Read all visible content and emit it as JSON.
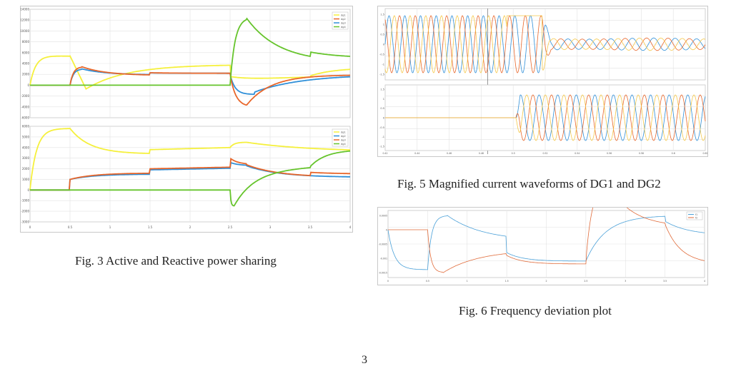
{
  "fig3": {
    "caption": "Fig. 3 Active and Reactive power sharing",
    "colors": {
      "yellow": "#f5f03c",
      "blue": "#2f8fd8",
      "orange": "#e8662a",
      "green": "#66c42c"
    },
    "top": {
      "legend": [
        "dg1",
        "dg2",
        "dg3",
        "dg4"
      ],
      "ylim": [
        -6000,
        14000
      ],
      "yticks": [
        "14000",
        "12000",
        "10000",
        "8000",
        "6000",
        "4000",
        "2000",
        "0",
        "-2000",
        "-4000",
        "-6000"
      ]
    },
    "bottom": {
      "legend": [
        "dg1",
        "dg2",
        "dg3",
        "dg4"
      ],
      "ylim": [
        -3000,
        6000
      ],
      "yticks": [
        "6000",
        "5000",
        "4000",
        "3000",
        "2000",
        "1000",
        "0",
        "-1000",
        "-2000",
        "-3000"
      ]
    },
    "xticks": [
      "0",
      "0.5",
      "1",
      "1.5",
      "2",
      "2.5",
      "3",
      "3.5",
      "4"
    ]
  },
  "fig5": {
    "caption": "Fig. 5 Magnified current waveforms of DG1 and DG2",
    "colors": [
      "#2f8fd8",
      "#e8662a",
      "#f5c84a"
    ],
    "top_yticks": [
      "1.5",
      "1",
      "0.5",
      "0",
      "-0.5",
      "-1",
      "-1.5"
    ],
    "bottom_yticks": [
      "1.5",
      "1",
      "0.5",
      "0",
      "-0.5",
      "-1",
      "-1.5"
    ],
    "xticks": [
      "0.42",
      "0.44",
      "0.46",
      "0.48",
      "0.5",
      "0.52",
      "0.54",
      "0.56",
      "0.58",
      "0.6",
      "0.62"
    ]
  },
  "fig6": {
    "caption": "Fig. 6 Frequency deviation plot",
    "legend": [
      "f1",
      "f2"
    ],
    "colors": {
      "f1": "#4aa0d8",
      "f2": "#e06b3a"
    },
    "yticks": [
      "0.0005",
      "0",
      "-0.0005",
      "-0.001",
      "-0.0015"
    ],
    "xticks": [
      "0",
      "0.5",
      "1",
      "1.5",
      "2",
      "2.5",
      "3",
      "3.5",
      "4"
    ]
  },
  "page_number": "3"
}
